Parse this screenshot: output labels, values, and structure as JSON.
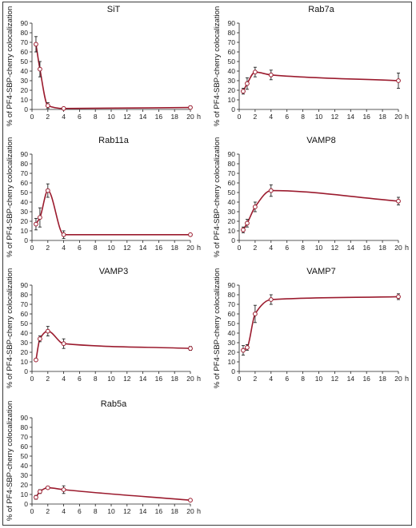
{
  "colors": {
    "line": "#9b1b2e",
    "marker_fill": "#ffffff",
    "marker_stroke": "#9b1b2e",
    "error_bar": "#222222",
    "axis": "#222222"
  },
  "chart_data": [
    {
      "type": "line",
      "title": "SiT",
      "xlabel": "h",
      "ylabel": "% of PF4-SBP-cherry colocalization",
      "xlim": [
        0,
        20
      ],
      "ylim": [
        0,
        90
      ],
      "xticks": [
        0,
        2,
        4,
        6,
        8,
        10,
        12,
        14,
        16,
        18,
        20
      ],
      "yticks": [
        0,
        10,
        20,
        30,
        40,
        50,
        60,
        70,
        80,
        90
      ],
      "series": [
        {
          "x": [
            0.5,
            1,
            2,
            4,
            20
          ],
          "y": [
            68,
            42,
            4,
            1,
            2
          ],
          "err": [
            8,
            8,
            3,
            1,
            1.5
          ]
        }
      ]
    },
    {
      "type": "line",
      "title": "Rab7a",
      "xlabel": "h",
      "ylabel": "% of PF4-SBP-cherry colocalization",
      "xlim": [
        0,
        20
      ],
      "ylim": [
        0,
        90
      ],
      "xticks": [
        0,
        2,
        4,
        6,
        8,
        10,
        12,
        14,
        16,
        18,
        20
      ],
      "yticks": [
        0,
        10,
        20,
        30,
        40,
        50,
        60,
        70,
        80,
        90
      ],
      "series": [
        {
          "x": [
            0.5,
            1,
            2,
            4,
            20
          ],
          "y": [
            19,
            27,
            39,
            36,
            30
          ],
          "err": [
            3,
            6,
            5,
            5,
            8
          ]
        }
      ]
    },
    {
      "type": "line",
      "title": "Rab11a",
      "xlabel": "h",
      "ylabel": "% of PF4-SBP-cherry colocalization",
      "xlim": [
        0,
        20
      ],
      "ylim": [
        0,
        90
      ],
      "xticks": [
        0,
        2,
        4,
        6,
        8,
        10,
        12,
        14,
        16,
        18,
        20
      ],
      "yticks": [
        0,
        10,
        20,
        30,
        40,
        50,
        60,
        70,
        80,
        90
      ],
      "series": [
        {
          "x": [
            0.5,
            1,
            2,
            4,
            20
          ],
          "y": [
            17,
            24,
            52,
            6,
            6
          ],
          "err": [
            6,
            10,
            7,
            4,
            1
          ]
        }
      ]
    },
    {
      "type": "line",
      "title": "VAMP8",
      "xlabel": "h",
      "ylabel": "% of PF4-SBP-cherry colocalization",
      "xlim": [
        0,
        20
      ],
      "ylim": [
        0,
        90
      ],
      "xticks": [
        0,
        2,
        4,
        6,
        8,
        10,
        12,
        14,
        16,
        18,
        20
      ],
      "yticks": [
        0,
        10,
        20,
        30,
        40,
        50,
        60,
        70,
        80,
        90
      ],
      "series": [
        {
          "x": [
            0.5,
            1,
            2,
            4,
            20
          ],
          "y": [
            11,
            18,
            35,
            52,
            41
          ],
          "err": [
            3,
            4,
            5,
            6,
            4
          ]
        }
      ]
    },
    {
      "type": "line",
      "title": "VAMP3",
      "xlabel": "h",
      "ylabel": "% of PF4-SBP-cherry colocalization",
      "xlim": [
        0,
        20
      ],
      "ylim": [
        0,
        90
      ],
      "xticks": [
        0,
        2,
        4,
        6,
        8,
        10,
        12,
        14,
        16,
        18,
        20
      ],
      "yticks": [
        0,
        10,
        20,
        30,
        40,
        50,
        60,
        70,
        80,
        90
      ],
      "series": [
        {
          "x": [
            0.5,
            1,
            2,
            4,
            20
          ],
          "y": [
            12,
            34,
            42,
            29,
            24
          ],
          "err": [
            1,
            3,
            5,
            5,
            2
          ]
        }
      ]
    },
    {
      "type": "line",
      "title": "VAMP7",
      "xlabel": "h",
      "ylabel": "% of PF4-SBP-cherry colocalization",
      "xlim": [
        0,
        20
      ],
      "ylim": [
        0,
        90
      ],
      "xticks": [
        0,
        2,
        4,
        6,
        8,
        10,
        12,
        14,
        16,
        18,
        20
      ],
      "yticks": [
        0,
        10,
        20,
        30,
        40,
        50,
        60,
        70,
        80,
        90
      ],
      "series": [
        {
          "x": [
            0.5,
            1,
            2,
            4,
            20
          ],
          "y": [
            22,
            25,
            60,
            75,
            78
          ],
          "err": [
            5,
            3,
            9,
            5,
            3
          ]
        }
      ]
    },
    {
      "type": "line",
      "title": "Rab5a",
      "xlabel": "h",
      "ylabel": "% of PF4-SBP-cherry colocalization",
      "xlim": [
        0,
        20
      ],
      "ylim": [
        0,
        90
      ],
      "xticks": [
        0,
        2,
        4,
        6,
        8,
        10,
        12,
        14,
        16,
        18,
        20
      ],
      "yticks": [
        0,
        10,
        20,
        30,
        40,
        50,
        60,
        70,
        80,
        90
      ],
      "series": [
        {
          "x": [
            0.5,
            1,
            2,
            4,
            20
          ],
          "y": [
            7,
            13,
            17,
            15,
            4
          ],
          "err": [
            2,
            2,
            1,
            4,
            1
          ]
        }
      ]
    }
  ]
}
